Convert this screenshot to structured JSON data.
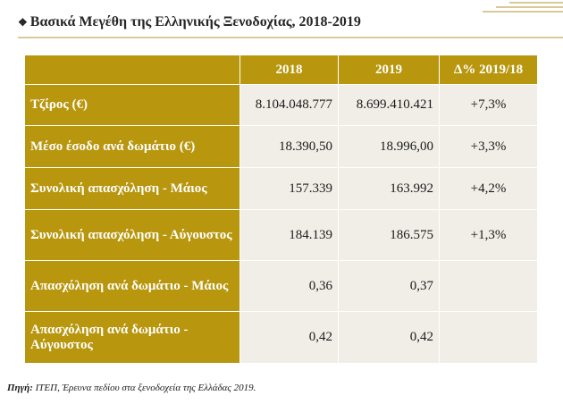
{
  "title": "Βασικά Μεγέθη της Ελληνικής Ξενοδοχίας, 2018-2019",
  "title_bullet_icon": "diamond-bullet-icon",
  "colors": {
    "header_gold": "#b8960e",
    "cell_bg": "#f1eee8",
    "accent_line": "#d7c99a"
  },
  "table": {
    "headers": [
      "",
      "2018",
      "2019",
      "Δ% 2019/18"
    ],
    "rows": [
      {
        "label": "Τζίρος (€)",
        "v2018": "8.104.048.777",
        "v2019": "8.699.410.421",
        "delta": "+7,3%"
      },
      {
        "label": "Μέσο έσοδο ανά δωμάτιο (€)",
        "v2018": "18.390,50",
        "v2019": "18.996,00",
        "delta": "+3,3%"
      },
      {
        "label": "Συνολική απασχόληση - Μάιος",
        "v2018": "157.339",
        "v2019": "163.992",
        "delta": "+4,2%"
      },
      {
        "label": "Συνολική απασχόληση - Αύγουστος",
        "v2018": "184.139",
        "v2019": "186.575",
        "delta": "+1,3%"
      },
      {
        "label": "Απασχόληση ανά δωμάτιο - Μάιος",
        "v2018": "0,36",
        "v2019": "0,37",
        "delta": ""
      },
      {
        "label": "Απασχόληση ανά δωμάτιο - Αύγουστος",
        "v2018": "0,42",
        "v2019": "0,42",
        "delta": ""
      }
    ]
  },
  "source": {
    "label": "Πηγή:",
    "text": " ΙΤΕΠ, Έρευνα πεδίου στα ξενοδοχεία της Ελλάδας 2019."
  }
}
